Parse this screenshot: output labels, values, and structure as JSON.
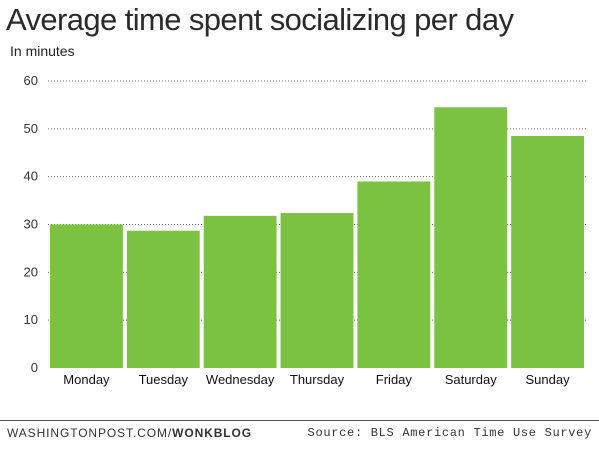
{
  "chart_data": {
    "type": "bar",
    "title": "Average time spent socializing per day",
    "unit_label": "In minutes",
    "categories": [
      "Monday",
      "Tuesday",
      "Wednesday",
      "Thursday",
      "Friday",
      "Saturday",
      "Sunday"
    ],
    "values": [
      30,
      28.7,
      31.8,
      32.4,
      39,
      54.5,
      48.5
    ],
    "ylim": [
      0,
      60
    ],
    "yticks": [
      "0",
      "10",
      "20",
      "30",
      "40",
      "50",
      "60"
    ],
    "grid": true,
    "bar_color": "#7cc242"
  },
  "footer": {
    "credit_prefix": "WASHINGTONPOST.COM/",
    "credit_suffix": "WONKBLOG",
    "source": "Source: BLS American Time Use Survey"
  }
}
